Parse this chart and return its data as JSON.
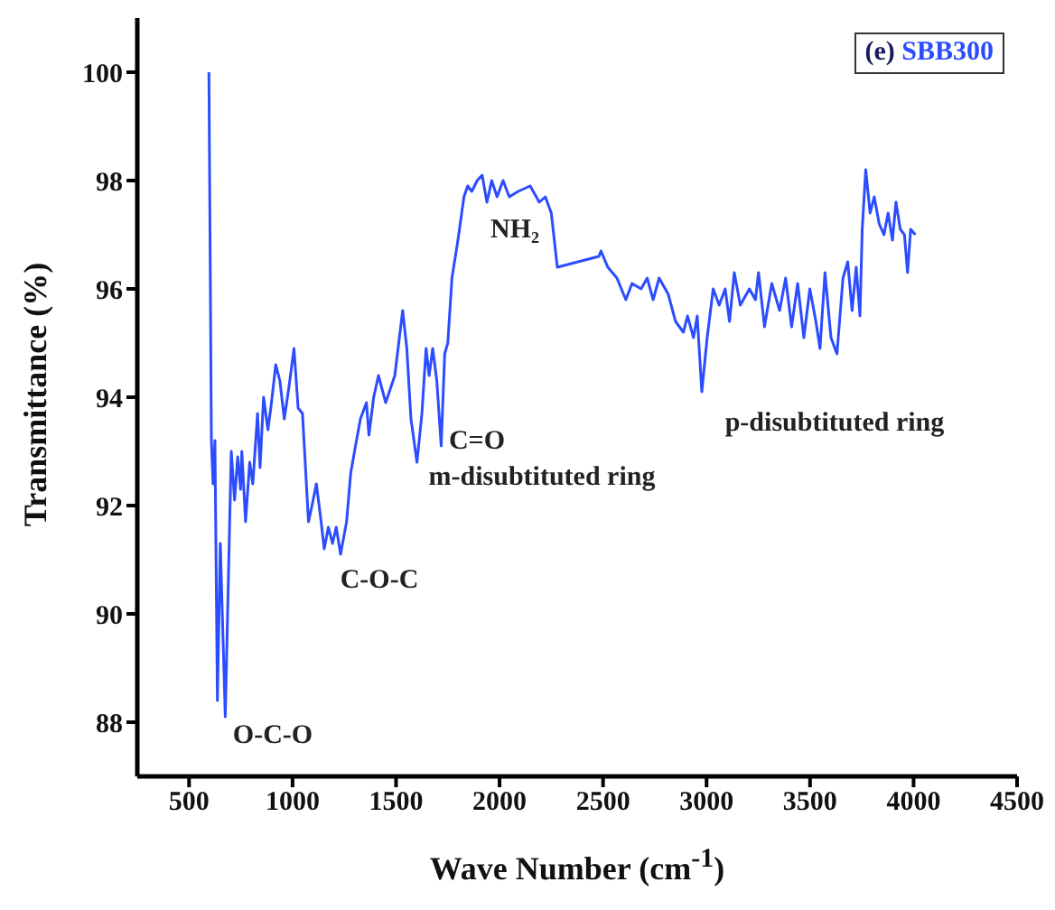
{
  "chart_data": {
    "type": "line",
    "title": "(e) SBB300",
    "xlabel": "Wave Number (cm$^{-1}$)",
    "ylabel": "Transmittance (%)",
    "xlim": [
      250,
      4500
    ],
    "xticks": [
      500,
      1000,
      1500,
      2000,
      2500,
      3000,
      3500,
      4000,
      4500
    ],
    "ylim": [
      87,
      101
    ],
    "yticks": [
      88,
      90,
      92,
      94,
      96,
      98,
      100
    ],
    "grid": false,
    "legend": false,
    "marker": "none",
    "line_style": "solid",
    "series": [
      {
        "color": "#2b4cff",
        "x": [
          596,
          608,
          616,
          625,
          637,
          651,
          675,
          704,
          720,
          735,
          749,
          755,
          773,
          793,
          808,
          831,
          843,
          860,
          881,
          895,
          919,
          939,
          960,
          983,
          1007,
          1027,
          1048,
          1077,
          1094,
          1115,
          1135,
          1153,
          1173,
          1193,
          1211,
          1232,
          1261,
          1281,
          1304,
          1328,
          1357,
          1369,
          1392,
          1415,
          1450,
          1494,
          1532,
          1552,
          1572,
          1601,
          1625,
          1645,
          1660,
          1677,
          1697,
          1718,
          1735,
          1750,
          1770,
          1799,
          1828,
          1846,
          1866,
          1892,
          1916,
          1939,
          1962,
          1988,
          2017,
          2047,
          2090,
          2148,
          2192,
          2221,
          2250,
          2279,
          2480,
          2490,
          2523,
          2567,
          2610,
          2640,
          2684,
          2713,
          2742,
          2771,
          2815,
          2850,
          2888,
          2908,
          2937,
          2955,
          2977,
          3003,
          3032,
          3061,
          3090,
          3111,
          3134,
          3163,
          3207,
          3236,
          3251,
          3280,
          3315,
          3353,
          3382,
          3411,
          3440,
          3470,
          3499,
          3528,
          3548,
          3572,
          3601,
          3630,
          3659,
          3682,
          3703,
          3723,
          3741,
          3752,
          3769,
          3790,
          3810,
          3834,
          3857,
          3877,
          3898,
          3915,
          3936,
          3956,
          3971,
          3986,
          4009
        ],
        "values": [
          100,
          93.2,
          92.4,
          93.2,
          88.4,
          91.3,
          88.1,
          93.0,
          92.1,
          92.9,
          92.3,
          93.0,
          91.7,
          92.8,
          92.4,
          93.7,
          92.7,
          94.0,
          93.4,
          93.8,
          94.6,
          94.3,
          93.6,
          94.2,
          94.9,
          93.8,
          93.7,
          91.7,
          92.0,
          92.4,
          91.8,
          91.2,
          91.6,
          91.3,
          91.6,
          91.1,
          91.7,
          92.6,
          93.1,
          93.6,
          93.9,
          93.3,
          94.0,
          94.4,
          93.9,
          94.4,
          95.6,
          94.9,
          93.6,
          92.8,
          93.7,
          94.9,
          94.4,
          94.9,
          94.3,
          93.1,
          94.8,
          95.0,
          96.2,
          96.9,
          97.7,
          97.9,
          97.8,
          98.0,
          98.1,
          97.6,
          98.0,
          97.7,
          98.0,
          97.7,
          97.8,
          97.9,
          97.6,
          97.7,
          97.4,
          96.4,
          96.6,
          96.7,
          96.4,
          96.2,
          95.8,
          96.1,
          96.0,
          96.2,
          95.8,
          96.2,
          95.9,
          95.4,
          95.2,
          95.5,
          95.1,
          95.5,
          94.1,
          95.1,
          96.0,
          95.7,
          96.0,
          95.4,
          96.3,
          95.7,
          96.0,
          95.8,
          96.3,
          95.3,
          96.1,
          95.6,
          96.2,
          95.3,
          96.1,
          95.1,
          96.0,
          95.4,
          94.9,
          96.3,
          95.1,
          94.8,
          96.2,
          96.5,
          95.6,
          96.4,
          95.5,
          97.1,
          98.2,
          97.4,
          97.7,
          97.2,
          97.0,
          97.4,
          96.9,
          97.6,
          97.1,
          97.0,
          96.3,
          97.1,
          97.0
        ]
      }
    ],
    "annotations": [
      "O-C-O",
      "C-O-C",
      "C=O",
      "m-disubtituted ring",
      "NH₂",
      "p-disubtituted ring"
    ]
  }
}
